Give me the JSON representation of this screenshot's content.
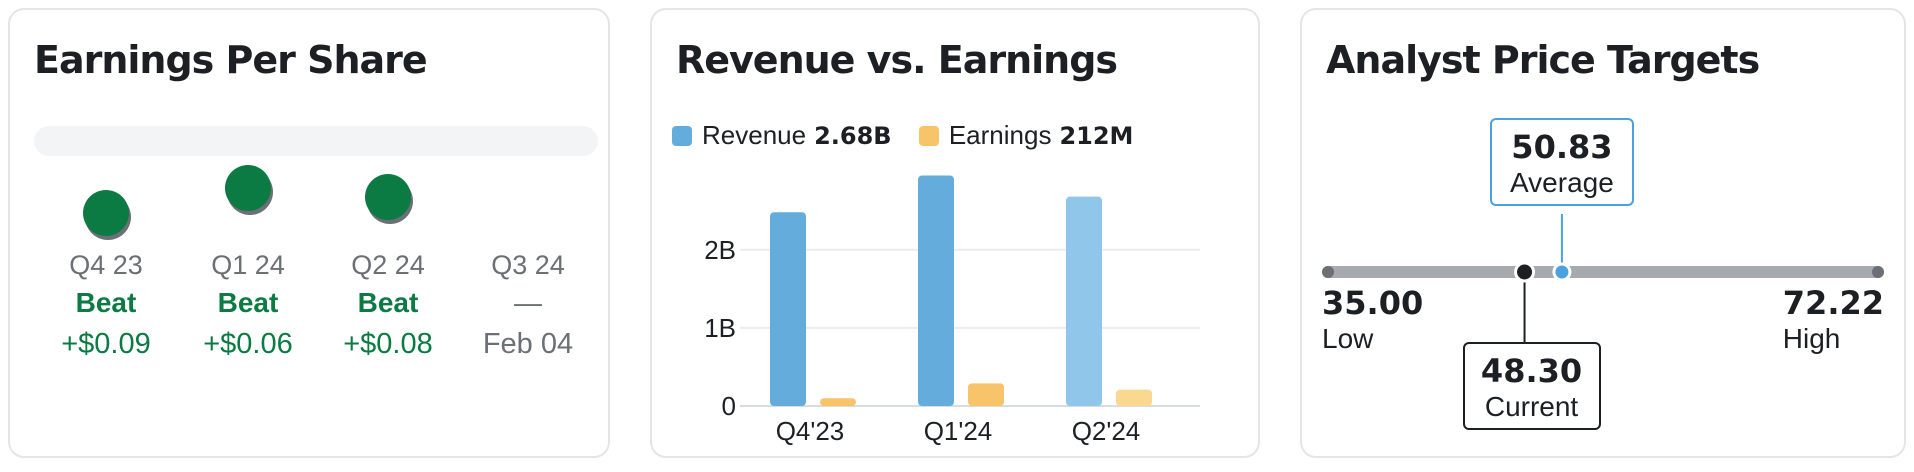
{
  "eps": {
    "title": "Earnings Per Share",
    "quarters": [
      {
        "quarter": "Q4 23",
        "result": "Beat",
        "value": "+$0.09",
        "reported": true
      },
      {
        "quarter": "Q1 24",
        "result": "Beat",
        "value": "+$0.06",
        "reported": true
      },
      {
        "quarter": "Q2 24",
        "result": "Beat",
        "value": "+$0.08",
        "reported": true
      },
      {
        "quarter": "Q3 24",
        "result": "—",
        "value": "Feb 04",
        "reported": false
      }
    ],
    "colors": {
      "beat": "#0b7a43",
      "pending": "#6b6f76"
    }
  },
  "revenue": {
    "title": "Revenue vs. Earnings",
    "legend": [
      {
        "label": "Revenue",
        "value": "2.68B",
        "color": "#63acdc"
      },
      {
        "label": "Earnings",
        "value": "212M",
        "color": "#f7c46a"
      }
    ]
  },
  "chart_data": {
    "type": "bar",
    "categories": [
      "Q4'23",
      "Q1'24",
      "Q2'24"
    ],
    "series": [
      {
        "name": "Revenue",
        "values": [
          2.48,
          2.95,
          2.68
        ],
        "colors": [
          "#63acdc",
          "#63acdc",
          "#8fc6ea"
        ]
      },
      {
        "name": "Earnings",
        "values": [
          0.1,
          0.29,
          0.21
        ],
        "colors": [
          "#f7c46a",
          "#f7c46a",
          "#fbd88f"
        ]
      }
    ],
    "y_ticks": [
      0,
      1,
      2
    ],
    "y_tick_labels": [
      "0",
      "1B",
      "2B"
    ],
    "ylim": [
      0,
      3.2
    ],
    "grid": true
  },
  "targets": {
    "title": "Analyst Price Targets",
    "low": {
      "value": "35.00",
      "label": "Low"
    },
    "high": {
      "value": "72.22",
      "label": "High"
    },
    "average": {
      "value": "50.83",
      "label": "Average"
    },
    "current": {
      "value": "48.30",
      "label": "Current"
    },
    "range_min": 35.0,
    "range_max": 72.22,
    "colors": {
      "track": "#a7abb0",
      "average": "#4aa3df",
      "current": "#1c1f24"
    }
  }
}
